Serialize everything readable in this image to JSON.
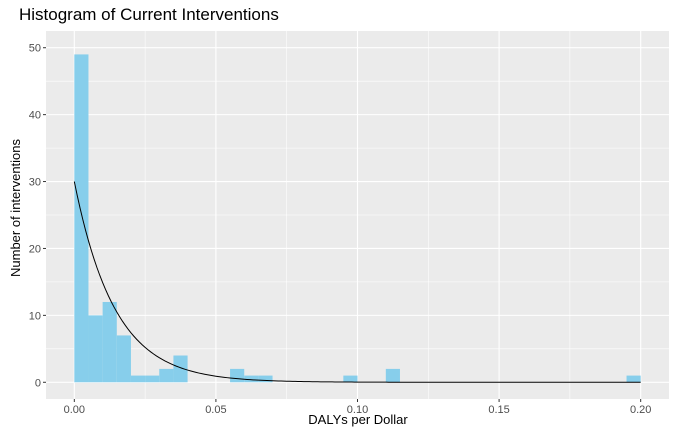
{
  "chart_data": {
    "type": "bar",
    "title": "Histogram of Current Interventions",
    "xlabel": "DALYs per Dollar",
    "ylabel": "Number of interventions",
    "xlim": [
      -0.01,
      0.21
    ],
    "ylim": [
      -2.5,
      52.5
    ],
    "x_ticks": [
      0,
      0.05,
      0.1,
      0.15,
      0.2
    ],
    "x_tick_labels": [
      "0.00",
      "0.05",
      "0.10",
      "0.15",
      "0.20"
    ],
    "y_ticks": [
      0,
      10,
      20,
      30,
      40,
      50
    ],
    "y_tick_labels": [
      "0",
      "10",
      "20",
      "30",
      "40",
      "50"
    ],
    "grid": true,
    "bin_width": 0.005,
    "bins": [
      {
        "start": 0.0,
        "count": 49
      },
      {
        "start": 0.005,
        "count": 10
      },
      {
        "start": 0.01,
        "count": 12
      },
      {
        "start": 0.015,
        "count": 7
      },
      {
        "start": 0.02,
        "count": 1
      },
      {
        "start": 0.025,
        "count": 1
      },
      {
        "start": 0.03,
        "count": 2
      },
      {
        "start": 0.035,
        "count": 4
      },
      {
        "start": 0.04,
        "count": 0
      },
      {
        "start": 0.045,
        "count": 0
      },
      {
        "start": 0.05,
        "count": 0
      },
      {
        "start": 0.055,
        "count": 2
      },
      {
        "start": 0.06,
        "count": 1
      },
      {
        "start": 0.065,
        "count": 1
      },
      {
        "start": 0.095,
        "count": 1
      },
      {
        "start": 0.11,
        "count": 2
      },
      {
        "start": 0.195,
        "count": 1
      }
    ],
    "fit_curve": {
      "type": "exponential",
      "y0": 30,
      "rate": 70,
      "x_range": [
        0,
        0.2
      ]
    },
    "bar_color": "#87ceeb",
    "panel_color": "#ebebeb",
    "grid_color": "#ffffff",
    "curve_color": "#000000"
  }
}
